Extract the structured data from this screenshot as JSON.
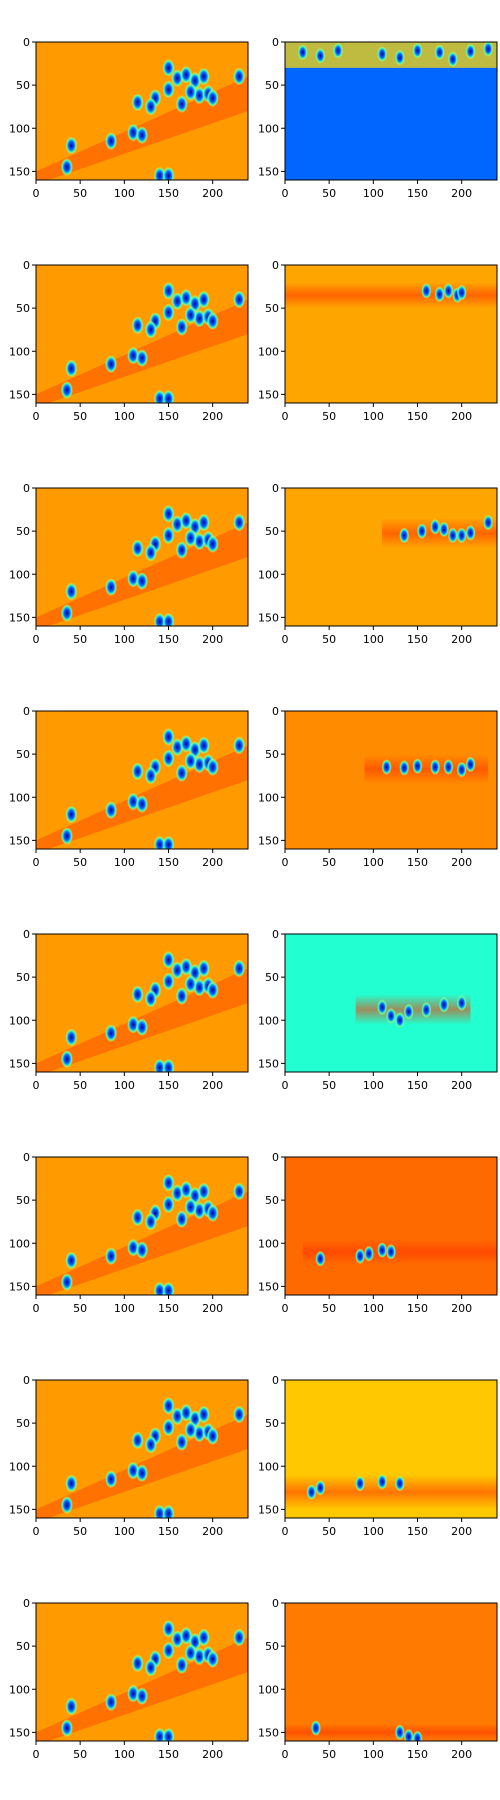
{
  "chart_data": {
    "type": "heatmap",
    "layout": "8 rows x 2 columns of image panels",
    "colormap": "jet",
    "x_ticks": [
      "0",
      "50",
      "100",
      "150",
      "200"
    ],
    "x_tick_values": [
      0,
      50,
      100,
      150,
      200
    ],
    "y_ticks": [
      "0",
      "50",
      "100",
      "150"
    ],
    "y_tick_values": [
      0,
      50,
      100,
      150
    ],
    "xlim": [
      0,
      240
    ],
    "ylim": [
      160,
      0
    ],
    "panels": [
      {
        "row": 1,
        "left": {
          "background": "#ff9a00",
          "band_y": [
            0,
            160
          ]
        },
        "right": {
          "background": "#0066ff",
          "band_y": [
            0,
            30
          ],
          "band_x": [
            0,
            240
          ]
        }
      },
      {
        "row": 2,
        "left": {
          "background": "#ff9a00",
          "band_y": [
            20,
            160
          ]
        },
        "right": {
          "background": "#ffa500",
          "band_y": [
            20,
            50
          ],
          "band_x": [
            0,
            240
          ]
        }
      },
      {
        "row": 3,
        "left": {
          "background": "#ff9a00",
          "band_y": [
            30,
            160
          ]
        },
        "right": {
          "background": "#ffa500",
          "band_y": [
            35,
            70
          ],
          "band_x": [
            110,
            240
          ]
        }
      },
      {
        "row": 4,
        "left": {
          "background": "#ff9a00",
          "band_y": [
            40,
            160
          ]
        },
        "right": {
          "background": "#ff8c00",
          "band_y": [
            50,
            85
          ],
          "band_x": [
            90,
            230
          ]
        }
      },
      {
        "row": 5,
        "left": {
          "background": "#ff9a00",
          "band_y": [
            40,
            160
          ]
        },
        "right": {
          "background": "#22ffd0",
          "band_y": [
            70,
            105
          ],
          "band_x": [
            80,
            210
          ]
        }
      },
      {
        "row": 6,
        "left": {
          "background": "#ff9a00",
          "band_y": [
            40,
            160
          ]
        },
        "right": {
          "background": "#ff6a00",
          "band_y": [
            95,
            125
          ],
          "band_x": [
            20,
            240
          ]
        }
      },
      {
        "row": 7,
        "left": {
          "background": "#ff9a00",
          "band_y": [
            40,
            160
          ]
        },
        "right": {
          "background": "#ffc800",
          "band_y": [
            110,
            150
          ],
          "band_x": [
            0,
            240
          ]
        }
      },
      {
        "row": 8,
        "left": {
          "background": "#ff9a00",
          "band_y": [
            40,
            160
          ]
        },
        "right": {
          "background": "#ff7a00",
          "band_y": [
            140,
            160
          ],
          "band_x": [
            0,
            240
          ]
        }
      }
    ],
    "blobs_left": [
      [
        135,
        65
      ],
      [
        150,
        55
      ],
      [
        160,
        42
      ],
      [
        170,
        38
      ],
      [
        180,
        45
      ],
      [
        185,
        62
      ],
      [
        195,
        60
      ],
      [
        200,
        65
      ],
      [
        165,
        72
      ],
      [
        150,
        30
      ],
      [
        115,
        70
      ],
      [
        130,
        75
      ],
      [
        110,
        105
      ],
      [
        120,
        108
      ],
      [
        85,
        115
      ],
      [
        40,
        120
      ],
      [
        35,
        145
      ],
      [
        140,
        155
      ],
      [
        150,
        155
      ],
      [
        230,
        40
      ],
      [
        175,
        58
      ],
      [
        190,
        40
      ]
    ],
    "blobs_right": [
      [
        [
          20,
          12
        ],
        [
          60,
          10
        ],
        [
          110,
          14
        ],
        [
          150,
          10
        ],
        [
          175,
          12
        ],
        [
          210,
          11
        ],
        [
          230,
          8
        ],
        [
          40,
          16
        ],
        [
          190,
          20
        ],
        [
          130,
          18
        ]
      ],
      [
        [
          160,
          30
        ],
        [
          175,
          34
        ],
        [
          185,
          30
        ],
        [
          195,
          35
        ],
        [
          200,
          32
        ]
      ],
      [
        [
          135,
          55
        ],
        [
          155,
          50
        ],
        [
          170,
          45
        ],
        [
          190,
          55
        ],
        [
          200,
          55
        ],
        [
          210,
          52
        ],
        [
          230,
          40
        ],
        [
          180,
          48
        ]
      ],
      [
        [
          115,
          65
        ],
        [
          135,
          66
        ],
        [
          150,
          64
        ],
        [
          170,
          65
        ],
        [
          185,
          65
        ],
        [
          200,
          68
        ],
        [
          210,
          62
        ]
      ],
      [
        [
          110,
          85
        ],
        [
          120,
          95
        ],
        [
          140,
          90
        ],
        [
          160,
          88
        ],
        [
          180,
          82
        ],
        [
          200,
          80
        ],
        [
          130,
          100
        ]
      ],
      [
        [
          85,
          115
        ],
        [
          110,
          108
        ],
        [
          120,
          110
        ],
        [
          40,
          118
        ],
        [
          95,
          112
        ]
      ],
      [
        [
          40,
          125
        ],
        [
          85,
          120
        ],
        [
          110,
          118
        ],
        [
          130,
          120
        ],
        [
          30,
          130
        ]
      ],
      [
        [
          35,
          145
        ],
        [
          140,
          155
        ],
        [
          150,
          157
        ],
        [
          130,
          150
        ]
      ]
    ]
  }
}
